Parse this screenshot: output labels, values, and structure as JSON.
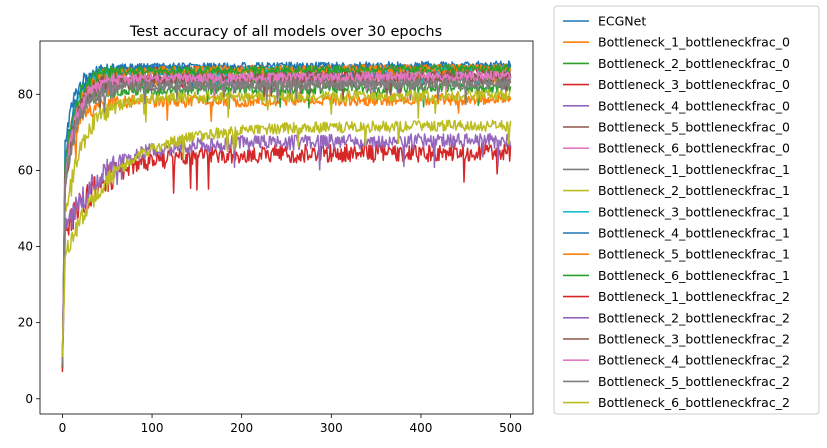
{
  "chart_data": {
    "type": "line",
    "title": "Test accuracy of all models over 30 epochs",
    "xlabel": "",
    "ylabel": "",
    "xlim": [
      -25,
      525
    ],
    "ylim": [
      -4,
      94
    ],
    "xticks": [
      0,
      100,
      200,
      300,
      400,
      500
    ],
    "yticks": [
      0,
      20,
      40,
      60,
      80
    ],
    "grid": false,
    "legend_position": "outside-right",
    "x_range": [
      0,
      500
    ],
    "series": [
      {
        "name": "ECGNet",
        "color": "#1f77b4",
        "start": 8,
        "early": 60,
        "late": 86,
        "tau": 10,
        "noise": 1.2
      },
      {
        "name": "Bottleneck_1_bottleneckfrac_0",
        "color": "#ff7f0e",
        "start": 10,
        "early": 50,
        "late": 78,
        "tau": 12,
        "noise": 1.6
      },
      {
        "name": "Bottleneck_2_bottleneckfrac_0",
        "color": "#2ca02c",
        "start": 9,
        "early": 55,
        "late": 81,
        "tau": 12,
        "noise": 1.4
      },
      {
        "name": "Bottleneck_3_bottleneckfrac_0",
        "color": "#d62728",
        "start": 7,
        "early": 55,
        "late": 86,
        "tau": 14,
        "noise": 1.3
      },
      {
        "name": "Bottleneck_4_bottleneckfrac_0",
        "color": "#9467bd",
        "start": 10,
        "early": 55,
        "late": 84,
        "tau": 14,
        "noise": 1.3
      },
      {
        "name": "Bottleneck_5_bottleneckfrac_0",
        "color": "#8c564b",
        "start": 8,
        "early": 50,
        "late": 83,
        "tau": 14,
        "noise": 1.5
      },
      {
        "name": "Bottleneck_6_bottleneckfrac_0",
        "color": "#e377c2",
        "start": 9,
        "early": 55,
        "late": 84,
        "tau": 14,
        "noise": 1.3
      },
      {
        "name": "Bottleneck_1_bottleneckfrac_1",
        "color": "#7f7f7f",
        "start": 10,
        "early": 50,
        "late": 83,
        "tau": 14,
        "noise": 1.4
      },
      {
        "name": "Bottleneck_2_bottleneckfrac_1",
        "color": "#bcbd22",
        "start": 9,
        "early": 45,
        "late": 79,
        "tau": 22,
        "noise": 1.5
      },
      {
        "name": "Bottleneck_3_bottleneckfrac_1",
        "color": "#17becf",
        "start": 8,
        "early": 55,
        "late": 86,
        "tau": 12,
        "noise": 1.0
      },
      {
        "name": "Bottleneck_4_bottleneckfrac_1",
        "color": "#1f77b4",
        "start": 9,
        "early": 55,
        "late": 87,
        "tau": 12,
        "noise": 1.0
      },
      {
        "name": "Bottleneck_5_bottleneckfrac_1",
        "color": "#ff7f0e",
        "start": 9,
        "early": 50,
        "late": 86,
        "tau": 14,
        "noise": 1.2
      },
      {
        "name": "Bottleneck_6_bottleneckfrac_1",
        "color": "#2ca02c",
        "start": 9,
        "early": 55,
        "late": 86,
        "tau": 12,
        "noise": 1.1
      },
      {
        "name": "Bottleneck_1_bottleneckfrac_2",
        "color": "#d62728",
        "start": 8,
        "early": 42,
        "late": 64,
        "tau": 40,
        "noise": 2.4
      },
      {
        "name": "Bottleneck_2_bottleneckfrac_2",
        "color": "#9467bd",
        "start": 9,
        "early": 42,
        "late": 67,
        "tau": 40,
        "noise": 2.0
      },
      {
        "name": "Bottleneck_3_bottleneckfrac_2",
        "color": "#8c564b",
        "start": 8,
        "early": 52,
        "late": 84,
        "tau": 14,
        "noise": 1.3
      },
      {
        "name": "Bottleneck_4_bottleneckfrac_2",
        "color": "#e377c2",
        "start": 10,
        "early": 52,
        "late": 84,
        "tau": 14,
        "noise": 1.3
      },
      {
        "name": "Bottleneck_5_bottleneckfrac_2",
        "color": "#7f7f7f",
        "start": 9,
        "early": 50,
        "late": 82,
        "tau": 14,
        "noise": 1.4
      },
      {
        "name": "Bottleneck_6_bottleneckfrac_2",
        "color": "#bcbd22",
        "start": 11,
        "early": 36,
        "late": 71,
        "tau": 55,
        "noise": 1.5
      }
    ]
  }
}
